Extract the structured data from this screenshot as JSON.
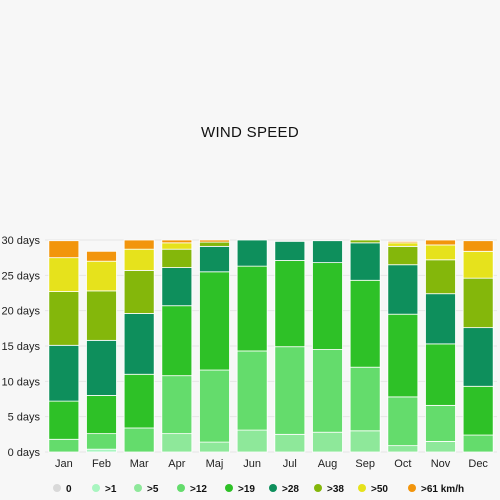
{
  "chart_data": {
    "type": "bar",
    "stacked": true,
    "title": "WIND SPEED",
    "categories": [
      "Jan",
      "Feb",
      "Mar",
      "Apr",
      "Maj",
      "Jun",
      "Jul",
      "Aug",
      "Sep",
      "Oct",
      "Nov",
      "Dec"
    ],
    "ylim": [
      0,
      30
    ],
    "yticks": [
      0,
      5,
      10,
      15,
      20,
      25,
      30
    ],
    "ytick_labels": [
      "0 days",
      "5 days",
      "10 days",
      "15 days",
      "20 days",
      "25 days",
      "30 days"
    ],
    "grid": true,
    "legend_position": "bottom",
    "series": [
      {
        "name": "0",
        "color": "#d9d9d9",
        "values": [
          0,
          0,
          0,
          0,
          0,
          0,
          0,
          0,
          0,
          0,
          0,
          0
        ]
      },
      {
        "name": ">1",
        "color": "#a8f5c0",
        "values": [
          0,
          0.4,
          0,
          0,
          0,
          0,
          0,
          0,
          0,
          0,
          0,
          0
        ]
      },
      {
        "name": ">5",
        "color": "#8ee89a",
        "values": [
          0,
          0,
          0,
          2.6,
          1.4,
          3.1,
          2.5,
          2.8,
          3,
          0.9,
          1.5,
          0
        ]
      },
      {
        "name": ">12",
        "color": "#64dc6c",
        "values": [
          1.8,
          2.2,
          3.4,
          8.2,
          10.2,
          11.2,
          12.4,
          11.7,
          9,
          6.9,
          5.1,
          2.4
        ]
      },
      {
        "name": ">19",
        "color": "#2ec127",
        "values": [
          5.4,
          5.4,
          7.6,
          9.9,
          13.9,
          12,
          12.2,
          12.3,
          12.3,
          11.7,
          8.7,
          6.9
        ]
      },
      {
        "name": ">28",
        "color": "#0e8f5c",
        "values": [
          7.9,
          7.8,
          8.6,
          5.4,
          3.6,
          3.7,
          2.7,
          3.1,
          5.3,
          7,
          7.1,
          8.3
        ]
      },
      {
        "name": ">38",
        "color": "#84b70b",
        "values": [
          7.6,
          7,
          6.1,
          2.6,
          0.6,
          0,
          0,
          0,
          0.4,
          2.6,
          4.8,
          7
        ]
      },
      {
        "name": ">50",
        "color": "#e6e21c",
        "values": [
          4.8,
          4.2,
          3,
          0.9,
          0,
          0,
          0,
          0,
          0,
          0.5,
          2.1,
          3.8
        ]
      },
      {
        "name": ">61 km/h",
        "color": "#f2950c",
        "values": [
          2.4,
          1.4,
          1.3,
          0.4,
          0.3,
          0,
          0,
          0,
          0,
          0.2,
          0.7,
          1.5
        ]
      }
    ]
  }
}
